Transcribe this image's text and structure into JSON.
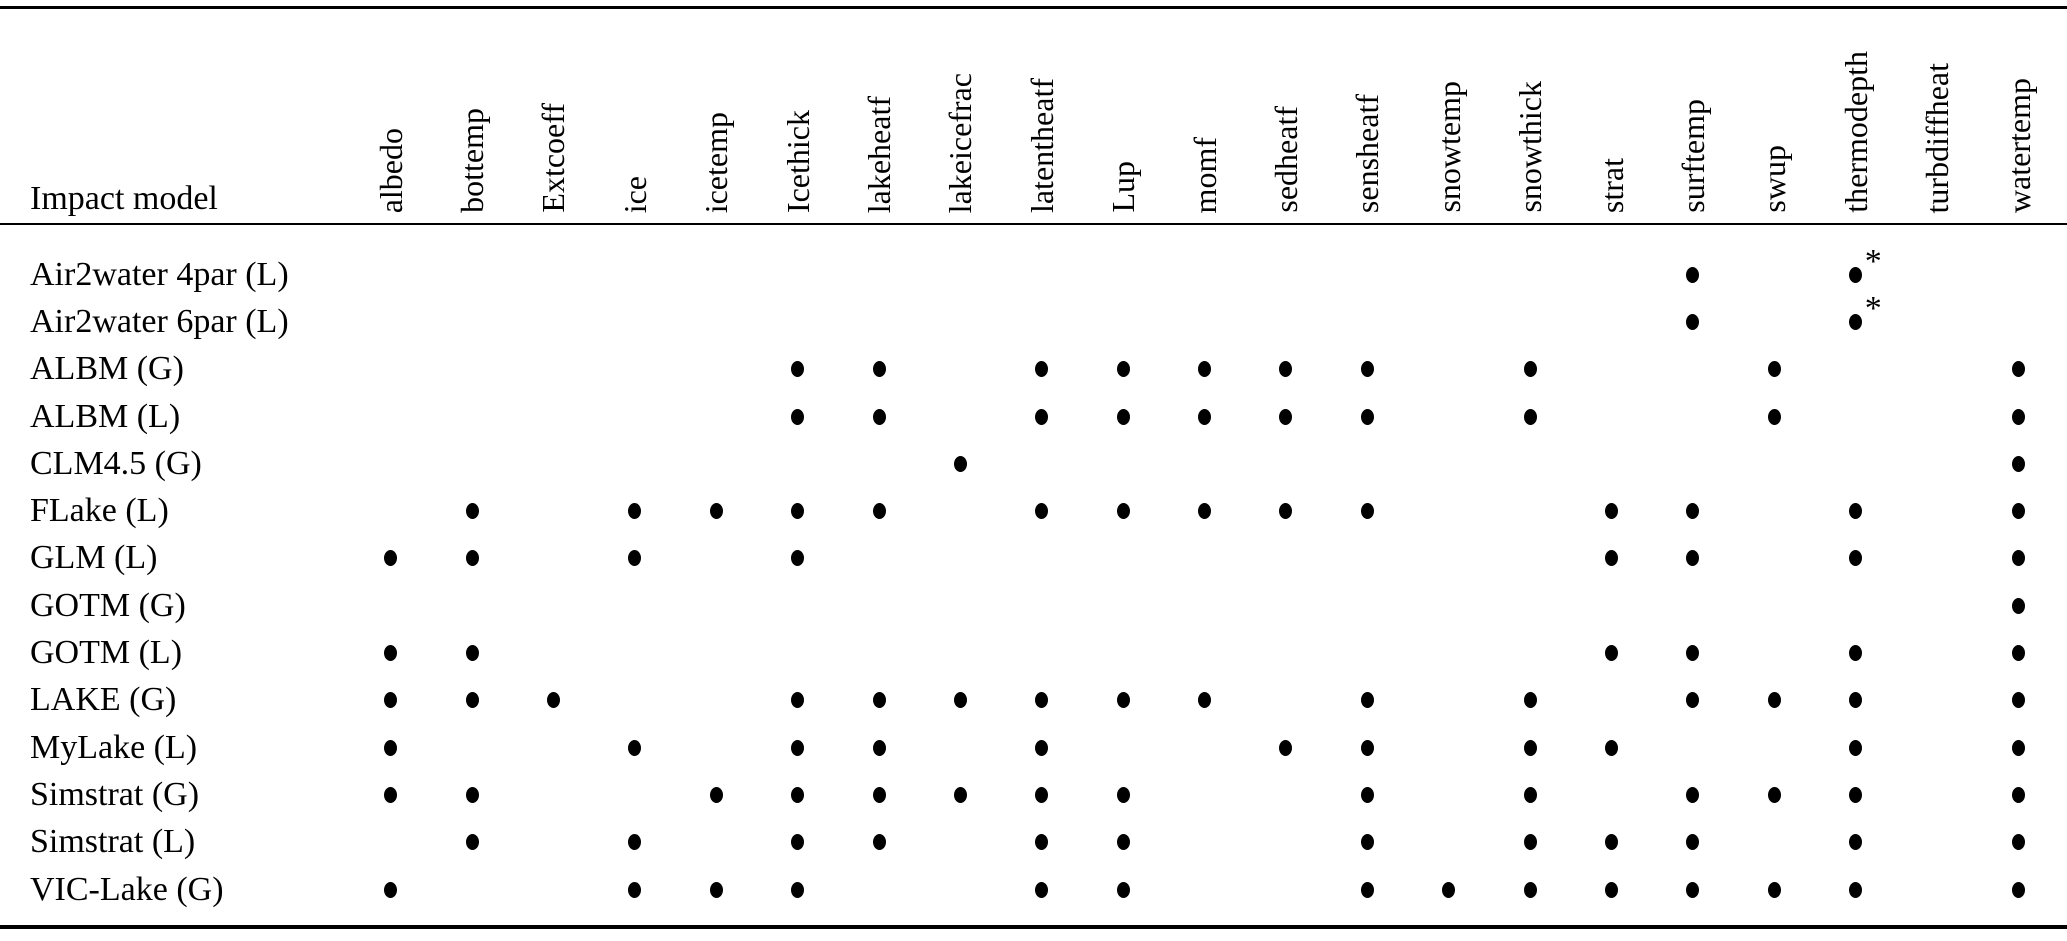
{
  "table": {
    "header": {
      "row_label": "Impact model",
      "columns": [
        "albedo",
        "bottemp",
        "Extcoeff",
        "ice",
        "icetemp",
        "Icethick",
        "lakeheatf",
        "lakeicefrac",
        "latentheatf",
        "Lup",
        "momf",
        "sedheatf",
        "sensheatf",
        "snowtemp",
        "snowthick",
        "strat",
        "surftemp",
        "swup",
        "thermodepth",
        "turbdiffheat",
        "watertemp"
      ]
    },
    "footnote_marker": "*",
    "rows": [
      {
        "label": "Air2water 4par (L)",
        "dots": [
          "surftemp",
          "thermodepth"
        ],
        "starred": [
          "thermodepth"
        ]
      },
      {
        "label": "Air2water 6par (L)",
        "dots": [
          "surftemp",
          "thermodepth"
        ],
        "starred": [
          "thermodepth"
        ]
      },
      {
        "label": "ALBM (G)",
        "dots": [
          "Icethick",
          "lakeheatf",
          "latentheatf",
          "Lup",
          "momf",
          "sedheatf",
          "sensheatf",
          "snowthick",
          "swup",
          "watertemp"
        ],
        "starred": []
      },
      {
        "label": "ALBM (L)",
        "dots": [
          "Icethick",
          "lakeheatf",
          "latentheatf",
          "Lup",
          "momf",
          "sedheatf",
          "sensheatf",
          "snowthick",
          "swup",
          "watertemp"
        ],
        "starred": []
      },
      {
        "label": "CLM4.5 (G)",
        "dots": [
          "lakeicefrac",
          "watertemp"
        ],
        "starred": []
      },
      {
        "label": "FLake (L)",
        "dots": [
          "bottemp",
          "ice",
          "icetemp",
          "Icethick",
          "lakeheatf",
          "latentheatf",
          "Lup",
          "momf",
          "sedheatf",
          "sensheatf",
          "strat",
          "surftemp",
          "thermodepth",
          "watertemp"
        ],
        "starred": []
      },
      {
        "label": "GLM (L)",
        "dots": [
          "albedo",
          "bottemp",
          "ice",
          "Icethick",
          "strat",
          "surftemp",
          "thermodepth",
          "watertemp"
        ],
        "starred": []
      },
      {
        "label": "GOTM (G)",
        "dots": [
          "watertemp"
        ],
        "starred": []
      },
      {
        "label": "GOTM (L)",
        "dots": [
          "albedo",
          "bottemp",
          "strat",
          "surftemp",
          "thermodepth",
          "watertemp"
        ],
        "starred": []
      },
      {
        "label": "LAKE (G)",
        "dots": [
          "albedo",
          "bottemp",
          "Extcoeff",
          "Icethick",
          "lakeheatf",
          "lakeicefrac",
          "latentheatf",
          "Lup",
          "momf",
          "sensheatf",
          "snowthick",
          "surftemp",
          "swup",
          "thermodepth",
          "watertemp"
        ],
        "starred": []
      },
      {
        "label": "MyLake (L)",
        "dots": [
          "albedo",
          "ice",
          "Icethick",
          "lakeheatf",
          "latentheatf",
          "sedheatf",
          "sensheatf",
          "snowthick",
          "strat",
          "thermodepth",
          "watertemp"
        ],
        "starred": []
      },
      {
        "label": "Simstrat (G)",
        "dots": [
          "albedo",
          "bottemp",
          "icetemp",
          "Icethick",
          "lakeheatf",
          "lakeicefrac",
          "latentheatf",
          "Lup",
          "sensheatf",
          "snowthick",
          "surftemp",
          "swup",
          "thermodepth",
          "watertemp"
        ],
        "starred": []
      },
      {
        "label": "Simstrat (L)",
        "dots": [
          "bottemp",
          "ice",
          "Icethick",
          "lakeheatf",
          "latentheatf",
          "Lup",
          "sensheatf",
          "snowthick",
          "strat",
          "surftemp",
          "thermodepth",
          "watertemp"
        ],
        "starred": []
      },
      {
        "label": "VIC-Lake (G)",
        "dots": [
          "albedo",
          "ice",
          "icetemp",
          "Icethick",
          "latentheatf",
          "Lup",
          "sensheatf",
          "snowtemp",
          "snowthick",
          "strat",
          "surftemp",
          "swup",
          "thermodepth",
          "watertemp"
        ],
        "starred": []
      }
    ]
  },
  "colors": {
    "background": "#ffffff",
    "text": "#000000",
    "dot": "#000000",
    "rule": "#000000"
  }
}
